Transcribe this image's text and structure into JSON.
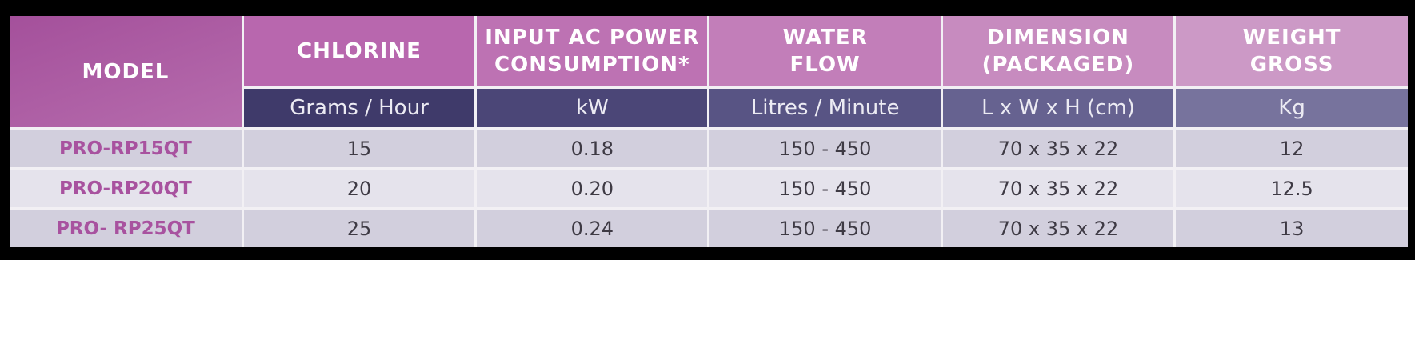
{
  "table": {
    "model_header": "MODEL",
    "columns": [
      {
        "title_lines": [
          "CHLORINE"
        ],
        "unit": "Grams / Hour",
        "head_color": "#b867ae",
        "unit_color": "#3f3a6a"
      },
      {
        "title_lines": [
          "INPUT AC POWER",
          "CONSUMPTION*"
        ],
        "unit": "kW",
        "head_color": "#bd72b3",
        "unit_color": "#4b4677"
      },
      {
        "title_lines": [
          "WATER",
          "FLOW"
        ],
        "unit": "Litres / Minute",
        "head_color": "#c27eb9",
        "unit_color": "#585484"
      },
      {
        "title_lines": [
          "DIMENSION",
          "(PACKAGED)"
        ],
        "unit": "L x W x H (cm)",
        "head_color": "#c78bbf",
        "unit_color": "#666290"
      },
      {
        "title_lines": [
          "WEIGHT",
          "GROSS"
        ],
        "unit": "Kg",
        "head_color": "#cc99c6",
        "unit_color": "#77739d"
      }
    ],
    "rows": [
      {
        "model": "PRO-RP15QT",
        "values": [
          "15",
          "0.18",
          "150 - 450",
          "70 x 35 x 22",
          "12"
        ]
      },
      {
        "model": "PRO-RP20QT",
        "values": [
          "20",
          "0.20",
          "150 - 450",
          "70 x 35 x 22",
          "12.5"
        ]
      },
      {
        "model": "PRO- RP25QT",
        "values": [
          "25",
          "0.24",
          "150 - 450",
          "70 x 35 x 22",
          "13"
        ]
      }
    ]
  }
}
